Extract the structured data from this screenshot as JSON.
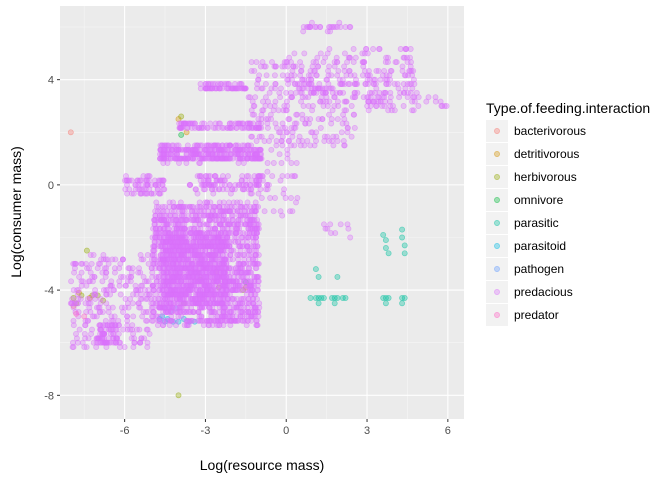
{
  "chart_data": {
    "type": "scatter",
    "xlabel": "Log(resource mass)",
    "ylabel": "Log(consumer mass)",
    "xlim": [
      -8.4,
      6.6
    ],
    "ylim": [
      -8.9,
      6.8
    ],
    "x_ticks": [
      -6,
      -3,
      0,
      3,
      6
    ],
    "y_ticks": [
      -8,
      -4,
      0,
      4
    ],
    "grid": true,
    "legend": {
      "title": "Type.of.feeding.interaction",
      "position": "right"
    },
    "point_alpha": 0.35,
    "series": [
      {
        "name": "bacterivorous",
        "color": "#F8766D",
        "points": [
          [
            -8.0,
            2.0
          ],
          [
            -7.9,
            -4.6
          ]
        ]
      },
      {
        "name": "detritivorous",
        "color": "#D39200",
        "points": [
          [
            -7.7,
            -4.1
          ],
          [
            -7.3,
            -4.3
          ],
          [
            -4.0,
            2.5
          ],
          [
            -3.7,
            2.0
          ],
          [
            -2.6,
            -3.3
          ],
          [
            -1.5,
            -3.9
          ]
        ]
      },
      {
        "name": "herbivorous",
        "color": "#93AA00",
        "points": [
          [
            -7.9,
            -4.3
          ],
          [
            -7.8,
            -4.5
          ],
          [
            -7.6,
            -4.2
          ],
          [
            -7.4,
            -2.5
          ],
          [
            -7.2,
            -4.2
          ],
          [
            -7.0,
            -4.2
          ],
          [
            -6.8,
            -4.4
          ],
          [
            -4.0,
            -8.0
          ],
          [
            -3.9,
            2.6
          ],
          [
            -3.8,
            -4.5
          ],
          [
            -3.2,
            -3.6
          ],
          [
            -2.5,
            -3.9
          ],
          [
            -1.6,
            -4.0
          ]
        ]
      },
      {
        "name": "omnivore",
        "color": "#00BA38",
        "points": [
          [
            -3.9,
            1.9
          ],
          [
            -1.5,
            -3.7
          ]
        ]
      },
      {
        "name": "parasitic",
        "color": "#00C19F",
        "points": [
          [
            0.9,
            -4.3
          ],
          [
            1.1,
            -4.3
          ],
          [
            1.2,
            -4.3
          ],
          [
            1.3,
            -4.3
          ],
          [
            1.4,
            -4.3
          ],
          [
            1.7,
            -4.3
          ],
          [
            1.8,
            -4.3
          ],
          [
            1.9,
            -4.3
          ],
          [
            2.1,
            -4.3
          ],
          [
            2.2,
            -4.3
          ],
          [
            3.6,
            -4.3
          ],
          [
            3.7,
            -4.3
          ],
          [
            3.8,
            -4.3
          ],
          [
            4.3,
            -4.3
          ],
          [
            4.4,
            -4.3
          ],
          [
            1.1,
            -3.2
          ],
          [
            1.2,
            -3.5
          ],
          [
            1.9,
            -3.5
          ],
          [
            3.6,
            -1.9
          ],
          [
            3.7,
            -2.1
          ],
          [
            3.7,
            -2.4
          ],
          [
            3.8,
            -2.6
          ],
          [
            4.3,
            -1.7
          ],
          [
            4.3,
            -2.0
          ],
          [
            4.4,
            -2.3
          ],
          [
            4.4,
            -2.6
          ],
          [
            3.7,
            -4.5
          ],
          [
            4.3,
            -4.5
          ],
          [
            1.2,
            -4.5
          ],
          [
            1.8,
            -4.5
          ]
        ]
      },
      {
        "name": "parasitoid",
        "color": "#00B9E3",
        "points": [
          [
            -4.7,
            -5.1
          ],
          [
            -4.5,
            -5.2
          ],
          [
            -4.4,
            -5.1
          ],
          [
            -4.2,
            -5.2
          ],
          [
            -4.0,
            -5.2
          ],
          [
            -3.8,
            -5.1
          ],
          [
            -3.6,
            -5.2
          ],
          [
            -3.4,
            -5.2
          ],
          [
            -4.6,
            -5.0
          ]
        ]
      },
      {
        "name": "pathogen",
        "color": "#619CFF",
        "points": [
          [
            -4.5,
            -4.7
          ],
          [
            -4.3,
            -4.8
          ],
          [
            -4.1,
            -4.7
          ]
        ]
      },
      {
        "name": "predacious",
        "color": "#DB72FB",
        "points": [],
        "clusters": [
          {
            "x": [
              -5.0,
              -1.0
            ],
            "y": [
              -5.3,
              -0.7
            ],
            "n": 1400
          },
          {
            "x": [
              -4.6,
              -2.2
            ],
            "y": [
              -4.6,
              -1.8
            ],
            "n": 700
          },
          {
            "x": [
              -8.0,
              -5.0
            ],
            "y": [
              -6.2,
              -2.6
            ],
            "n": 260
          },
          {
            "x": [
              -7.0,
              -6.2
            ],
            "y": [
              -6.1,
              -5.3
            ],
            "n": 60
          },
          {
            "x": [
              -6.0,
              -4.5
            ],
            "y": [
              -0.4,
              0.3
            ],
            "n": 70
          },
          {
            "x": [
              -4.7,
              -0.9
            ],
            "y": [
              0.9,
              1.5
            ],
            "n": 340
          },
          {
            "x": [
              -3.6,
              -0.8
            ],
            "y": [
              -0.3,
              0.4
            ],
            "n": 110
          },
          {
            "x": [
              -4.0,
              -0.9
            ],
            "y": [
              2.1,
              2.4
            ],
            "n": 90
          },
          {
            "x": [
              -3.2,
              -1.4
            ],
            "y": [
              3.6,
              3.8
            ],
            "n": 60
          },
          {
            "x": [
              -1.4,
              2.6
            ],
            "y": [
              1.4,
              4.7
            ],
            "n": 240
          },
          {
            "x": [
              0.1,
              3.6
            ],
            "y": [
              3.0,
              5.2
            ],
            "n": 130
          },
          {
            "x": [
              2.8,
              4.8
            ],
            "y": [
              2.8,
              5.2
            ],
            "n": 110
          },
          {
            "x": [
              0.6,
              2.4
            ],
            "y": [
              5.9,
              6.1
            ],
            "n": 25
          },
          {
            "x": [
              -1.0,
              0.5
            ],
            "y": [
              -1.2,
              1.4
            ],
            "n": 40
          },
          {
            "x": [
              1.3,
              2.4
            ],
            "y": [
              -2.2,
              -1.4
            ],
            "n": 10
          },
          {
            "x": [
              4.6,
              6.0
            ],
            "y": [
              2.9,
              3.5
            ],
            "n": 12
          }
        ]
      },
      {
        "name": "predator",
        "color": "#FF61C3",
        "points": [
          [
            -7.8,
            -4.9
          ],
          [
            -7.5,
            -5.0
          ]
        ]
      }
    ]
  }
}
